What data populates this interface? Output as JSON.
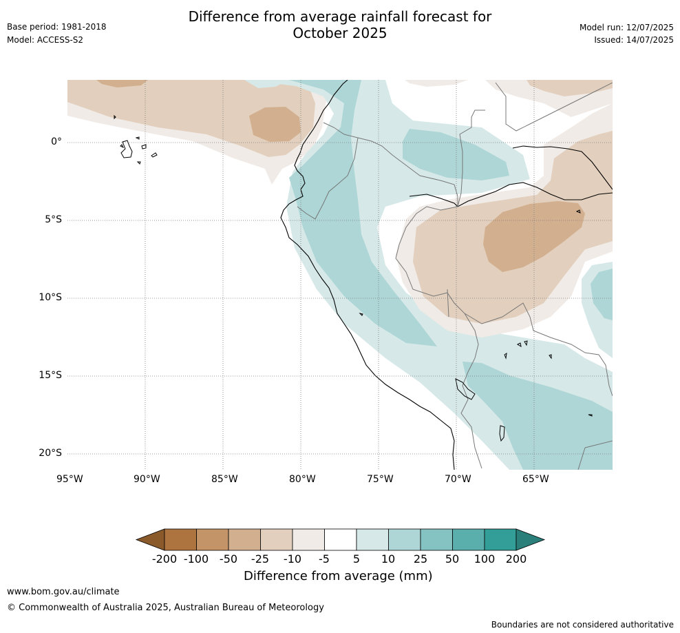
{
  "header": {
    "title_line1": "Difference from average rainfall forecast for",
    "title_line2": "October 2025",
    "base_period": "Base period: 1981-2018",
    "model": "Model: ACCESS-S2",
    "model_run": "Model run: 12/07/2025",
    "issued": "Issued: 14/07/2025"
  },
  "map": {
    "lat_labels": [
      "0°",
      "5°S",
      "10°S",
      "15°S",
      "20°S"
    ],
    "lon_labels": [
      "95°W",
      "90°W",
      "85°W",
      "80°W",
      "75°W",
      "70°W",
      "65°W"
    ]
  },
  "legend": {
    "title": "Difference from average (mm)",
    "ticks": [
      "-200",
      "-100",
      "-50",
      "-25",
      "-10",
      "-5",
      "5",
      "10",
      "25",
      "50",
      "100",
      "200"
    ],
    "colors": [
      "#8a5a2b",
      "#ae7440",
      "#c29468",
      "#d2b08f",
      "#e2cfbd",
      "#f0ebe6",
      "#ffffff",
      "#d6e9e8",
      "#aed6d6",
      "#85c3c2",
      "#5aaeac",
      "#339d98",
      "#2a7f7a"
    ]
  },
  "footer": {
    "url": "www.bom.gov.au/climate",
    "copyright": "© Commonwealth of Australia 2025, Australian Bureau of Meteorology",
    "disclaimer": "Boundaries are not considered authoritative"
  }
}
